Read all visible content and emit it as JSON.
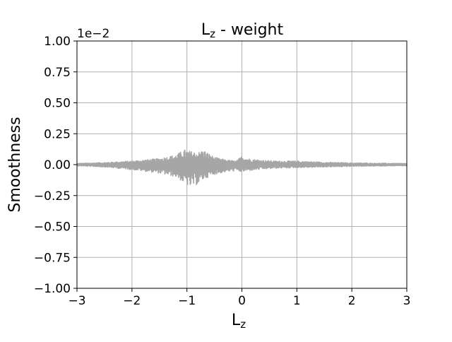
{
  "chart_data": {
    "type": "line",
    "title_main": "L",
    "title_sub": "z",
    "title_rest": " - weight",
    "xlabel_main": "L",
    "xlabel_sub": "z",
    "ylabel": "Smoothness",
    "y_offset_label": "1e−2",
    "xlim": [
      -3,
      3
    ],
    "ylim": [
      -1.0,
      1.0
    ],
    "xticks": [
      -3,
      -2,
      -1,
      0,
      1,
      2,
      3
    ],
    "xtick_labels": [
      "−3",
      "−2",
      "−1",
      "0",
      "1",
      "2",
      "3"
    ],
    "yticks": [
      -1.0,
      -0.75,
      -0.5,
      -0.25,
      0.0,
      0.25,
      0.5,
      0.75,
      1.0
    ],
    "ytick_labels": [
      "−1.00",
      "−0.75",
      "−0.50",
      "−0.25",
      "0.00",
      "0.25",
      "0.50",
      "0.75",
      "1.00"
    ],
    "grid": true,
    "series_color": "#a6a6a6",
    "envelope": {
      "x": [
        -3.0,
        -2.5,
        -2.0,
        -1.5,
        -1.2,
        -1.05,
        -0.95,
        -0.8,
        -0.7,
        -0.5,
        -0.3,
        -0.1,
        0.0,
        0.1,
        0.3,
        0.6,
        1.0,
        1.5,
        2.0,
        2.5,
        3.0
      ],
      "upper": [
        0.01,
        0.018,
        0.03,
        0.05,
        0.08,
        0.12,
        0.11,
        0.1,
        0.12,
        0.06,
        0.04,
        0.03,
        0.07,
        0.05,
        0.04,
        0.03,
        0.03,
        0.02,
        0.015,
        0.012,
        0.01
      ],
      "lower": [
        -0.01,
        -0.02,
        -0.04,
        -0.07,
        -0.1,
        -0.15,
        -0.18,
        -0.16,
        -0.12,
        -0.08,
        -0.06,
        -0.05,
        -0.06,
        -0.05,
        -0.04,
        -0.03,
        -0.025,
        -0.02,
        -0.015,
        -0.012,
        -0.01
      ]
    }
  }
}
